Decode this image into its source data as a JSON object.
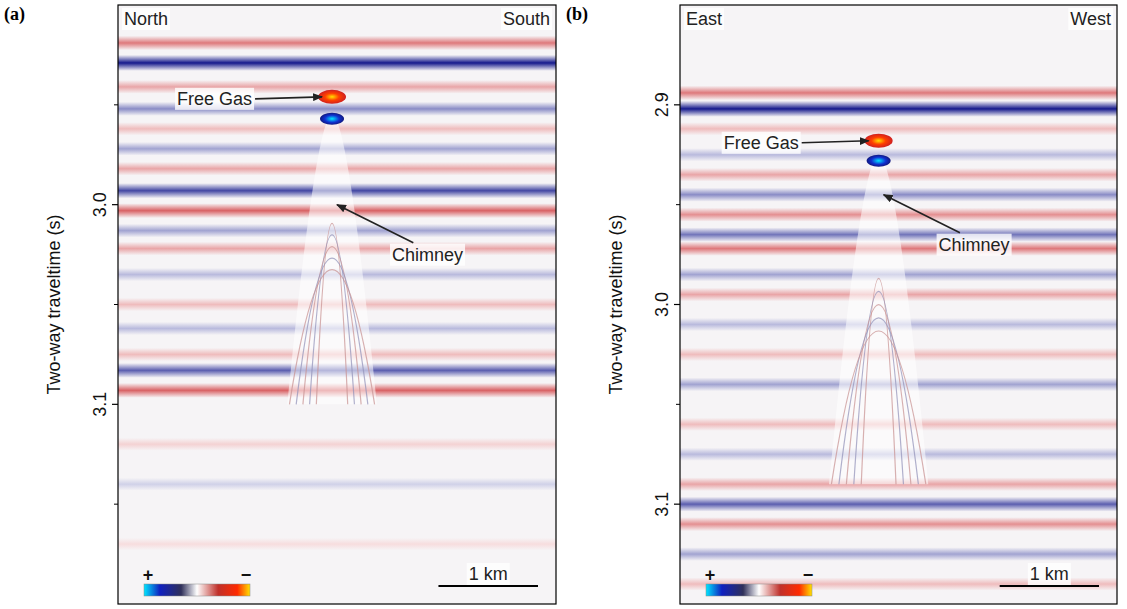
{
  "chart_data": [
    {
      "type": "seismic_section",
      "label": "(a)",
      "left_label": "North",
      "right_label": "South",
      "y_label": "Two-way traveltime (s)",
      "xlim": [
        0,
        4.4
      ],
      "ylim": [
        2.9,
        3.2
      ],
      "yticks": [
        {
          "value": 3,
          "label": "3.0"
        },
        {
          "value": 3.1,
          "label": "3.1"
        }
      ],
      "yticks_minor": [
        2.95,
        3.05,
        3.15
      ],
      "reflectors": {
        "t": [
          2.919,
          2.929,
          2.941,
          2.952,
          2.962,
          2.972,
          2.982,
          2.993,
          3.003,
          3.013,
          3.022,
          3.035,
          3.05,
          3.062,
          3.075,
          3.083,
          3.093,
          3.12,
          3.14,
          3.17
        ],
        "amp": [
          -0.6,
          1.0,
          -0.4,
          0.5,
          -0.3,
          0.4,
          -0.4,
          0.8,
          -0.7,
          0.4,
          -0.4,
          0.3,
          -0.3,
          0.3,
          -0.3,
          0.7,
          -0.7,
          -0.2,
          0.2,
          -0.15
        ]
      },
      "gas": {
        "x": 2.15,
        "t_top": 2.946,
        "t_base": 2.953
      },
      "chimney": {
        "x": 2.15,
        "t_top": 2.955,
        "t_bottom": 3.1,
        "width": 0.9
      },
      "annotations": [
        {
          "text": "Free Gas",
          "x": 2.05,
          "t": 2.946
        },
        {
          "text": "Chimney",
          "x": 2.2,
          "t": 3.0
        }
      ],
      "colorbar": {
        "labels": [
          "+",
          "−"
        ]
      },
      "scale_bar": {
        "length": 1,
        "label": "1 km"
      }
    },
    {
      "type": "seismic_section",
      "label": "(b)",
      "left_label": "East",
      "right_label": "West",
      "y_label": "Two-way traveltime (s)",
      "xlim": [
        0,
        4.4
      ],
      "ylim": [
        2.85,
        3.15
      ],
      "yticks": [
        {
          "value": 2.9,
          "label": "2.9"
        },
        {
          "value": 3,
          "label": "3.0"
        },
        {
          "value": 3.1,
          "label": "3.1"
        }
      ],
      "yticks_minor": [
        2.95,
        3.05
      ],
      "reflectors": {
        "t": [
          2.894,
          2.902,
          2.912,
          2.925,
          2.935,
          2.945,
          2.955,
          2.965,
          2.972,
          2.985,
          2.995,
          3.01,
          3.025,
          3.04,
          3.06,
          3.075,
          3.09,
          3.1,
          3.11,
          3.125,
          3.14
        ],
        "amp": [
          -0.6,
          1.0,
          -0.3,
          0.3,
          -0.4,
          0.5,
          -0.5,
          0.6,
          -0.6,
          0.4,
          -0.4,
          0.3,
          -0.3,
          0.4,
          -0.3,
          0.3,
          -0.4,
          0.7,
          -0.5,
          0.4,
          -0.3
        ]
      },
      "gas": {
        "x": 2.0,
        "t_top": 2.918,
        "t_base": 2.924
      },
      "chimney": {
        "x": 2.0,
        "t_top": 2.925,
        "t_bottom": 3.09,
        "width": 1.0
      },
      "annotations": [
        {
          "text": "Free Gas",
          "x": 1.9,
          "t": 2.918
        },
        {
          "text": "Chimney",
          "x": 2.05,
          "t": 2.945
        }
      ],
      "colorbar": {
        "labels": [
          "+",
          "−"
        ]
      },
      "scale_bar": {
        "length": 1,
        "label": "1 km"
      }
    }
  ]
}
